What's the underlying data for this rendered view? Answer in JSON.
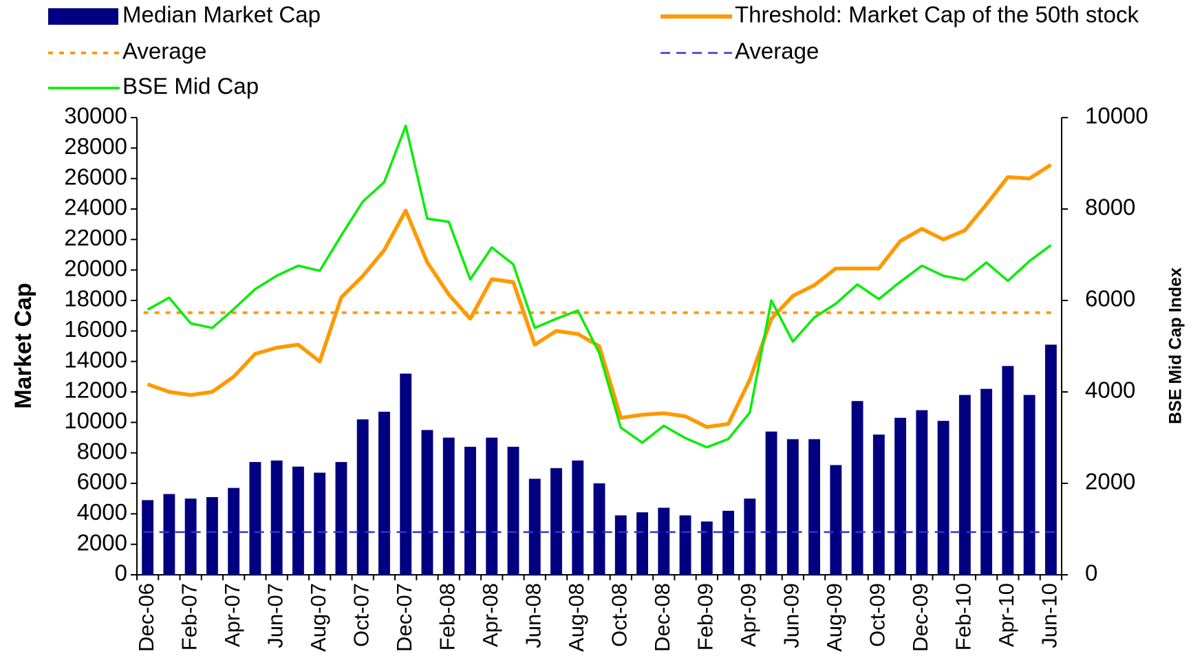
{
  "chart_data": {
    "type": "bar-line",
    "y_label": "Market Cap",
    "y2_label": "BSE Mid Cap Index",
    "categories": [
      "Dec-06",
      null,
      "Feb-07",
      null,
      "Apr-07",
      null,
      "Jun-07",
      null,
      "Aug-07",
      null,
      "Oct-07",
      null,
      "Dec-07",
      null,
      "Feb-08",
      null,
      "Apr-08",
      null,
      "Jun-08",
      null,
      "Aug-08",
      null,
      "Oct-08",
      null,
      "Dec-08",
      null,
      "Feb-09",
      null,
      "Apr-09",
      null,
      "Jun-09",
      null,
      "Aug-09",
      null,
      "Oct-09",
      null,
      "Dec-09",
      null,
      "Feb-10",
      null,
      "Apr-10",
      null,
      "Jun-10"
    ],
    "ylim": [
      0,
      30000
    ],
    "yticks": [
      0,
      2000,
      4000,
      6000,
      8000,
      10000,
      12000,
      14000,
      16000,
      18000,
      20000,
      22000,
      24000,
      26000,
      28000,
      30000
    ],
    "y2lim": [
      0,
      10000
    ],
    "y2ticks": [
      0,
      2000,
      4000,
      6000,
      8000,
      10000
    ],
    "series": [
      {
        "name": "Median Market Cap",
        "type": "bar",
        "color": "#000080",
        "values": [
          4900,
          5300,
          5000,
          5100,
          5700,
          7400,
          7500,
          7100,
          6700,
          7400,
          10200,
          10700,
          13200,
          9500,
          9000,
          8400,
          9000,
          8400,
          6300,
          7000,
          7500,
          6000,
          3900,
          4100,
          4400,
          3900,
          3500,
          4200,
          5000,
          9400,
          8900,
          8900,
          7200,
          11400,
          9200,
          10300,
          10800,
          10100,
          11800,
          12200,
          13700,
          11800,
          15100
        ]
      },
      {
        "name": "Threshold: Market Cap of the 50th stock",
        "type": "line",
        "color": "#ff9900",
        "values": [
          12500,
          12000,
          11800,
          12000,
          13000,
          14500,
          14900,
          15100,
          14000,
          18200,
          19600,
          21300,
          23900,
          20500,
          18400,
          16800,
          19400,
          19200,
          15100,
          16000,
          15800,
          15000,
          10300,
          10500,
          10600,
          10400,
          9700,
          9900,
          12800,
          16800,
          18300,
          19000,
          20100,
          20100,
          20100,
          21900,
          22700,
          22000,
          22600,
          24300,
          26100,
          26000,
          26900
        ]
      },
      {
        "name": "Average",
        "type": "hline",
        "style": "dotted",
        "color": "#ff9900",
        "value": 17200
      },
      {
        "name": "Average",
        "type": "hline",
        "style": "dashed",
        "color": "#3333cc",
        "value": 2800
      },
      {
        "name": "BSE Mid Cap",
        "type": "line",
        "axis": "y2",
        "color": "#00ee00",
        "values": [
          5800,
          6060,
          5500,
          5400,
          5810,
          6250,
          6540,
          6760,
          6650,
          7420,
          8160,
          8590,
          9820,
          7790,
          7720,
          6460,
          7160,
          6790,
          5400,
          5600,
          5780,
          4850,
          3220,
          2890,
          3260,
          2990,
          2790,
          2970,
          3550,
          6000,
          5100,
          5630,
          5930,
          6350,
          6030,
          6410,
          6760,
          6540,
          6450,
          6830,
          6430,
          6860,
          7210
        ]
      }
    ]
  }
}
